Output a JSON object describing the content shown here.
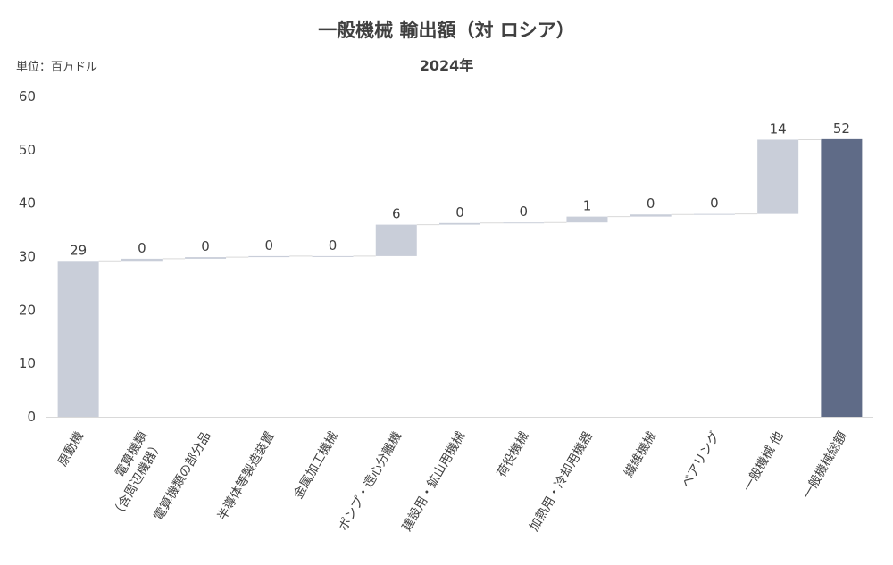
{
  "header": {
    "title": "一般機械 輸出額（対 ロシア）",
    "subtitle": "2024年",
    "unit": "単位：百万ドル"
  },
  "colors": {
    "component_bar": "#c9ced9",
    "total_bar": "#5f6b87",
    "axis": "#d9d9d9",
    "text": "#404040"
  },
  "chart_data": {
    "type": "bar",
    "subtype": "waterfall",
    "title": "一般機械 輸出額（対 ロシア）",
    "subtitle": "2024年",
    "ylabel": "単位：百万ドル",
    "ylim": [
      0,
      60
    ],
    "yticks": [
      0,
      10,
      20,
      30,
      40,
      50,
      60
    ],
    "grid": false,
    "categories": [
      "原動機",
      "電算機類\n（含周辺機器）",
      "電算機類の部分品",
      "半導体等製造装置",
      "金属加工機械",
      "ポンプ・遠心分離機",
      "建設用・鉱山用機械",
      "荷役機械",
      "加熱用・冷却用機器",
      "繊維機械",
      "ベアリング",
      "一般機械 他",
      "一般機械総額"
    ],
    "values": [
      29.2,
      0.4,
      0.3,
      0.2,
      0.0,
      5.9,
      0.3,
      0.1,
      1.1,
      0.4,
      0.1,
      13.9,
      52.0
    ],
    "data_labels": [
      "29",
      "0",
      "0",
      "0",
      "0",
      "6",
      "0",
      "0",
      "1",
      "0",
      "0",
      "14",
      "52"
    ],
    "is_total": [
      false,
      false,
      false,
      false,
      false,
      false,
      false,
      false,
      false,
      false,
      false,
      false,
      true
    ]
  }
}
